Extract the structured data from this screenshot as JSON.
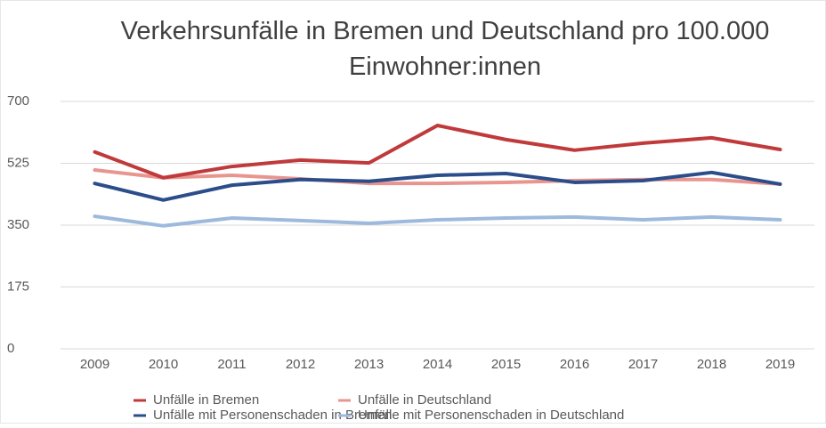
{
  "chart_data": {
    "type": "line",
    "title": "Verkehrsunfälle in Bremen und Deutschland pro 100.000 Einwohner:innen",
    "categories": [
      "2009",
      "2010",
      "2011",
      "2012",
      "2013",
      "2014",
      "2015",
      "2016",
      "2017",
      "2018",
      "2019"
    ],
    "series": [
      {
        "name": "Unfälle in Bremen",
        "color": "#c0393b",
        "values": [
          557,
          484,
          516,
          534,
          526,
          632,
          592,
          562,
          582,
          597,
          564
        ]
      },
      {
        "name": "Unfälle in Deutschland",
        "color": "#e8958f",
        "values": [
          506,
          484,
          491,
          481,
          468,
          468,
          471,
          476,
          479,
          479,
          466
        ]
      },
      {
        "name": "Unfälle mit Personenschaden in Bremen",
        "color": "#2b4d8a",
        "values": [
          468,
          421,
          463,
          479,
          474,
          491,
          496,
          471,
          476,
          499,
          466
        ]
      },
      {
        "name": "Unfälle mit Personenschaden in Deutschland",
        "color": "#9dbadd",
        "values": [
          375,
          348,
          370,
          363,
          355,
          365,
          370,
          373,
          365,
          373,
          365
        ]
      }
    ],
    "ylim": [
      0,
      700
    ],
    "yticks": [
      0,
      175,
      350,
      525,
      700
    ],
    "grid": true,
    "legend": "bottom"
  }
}
